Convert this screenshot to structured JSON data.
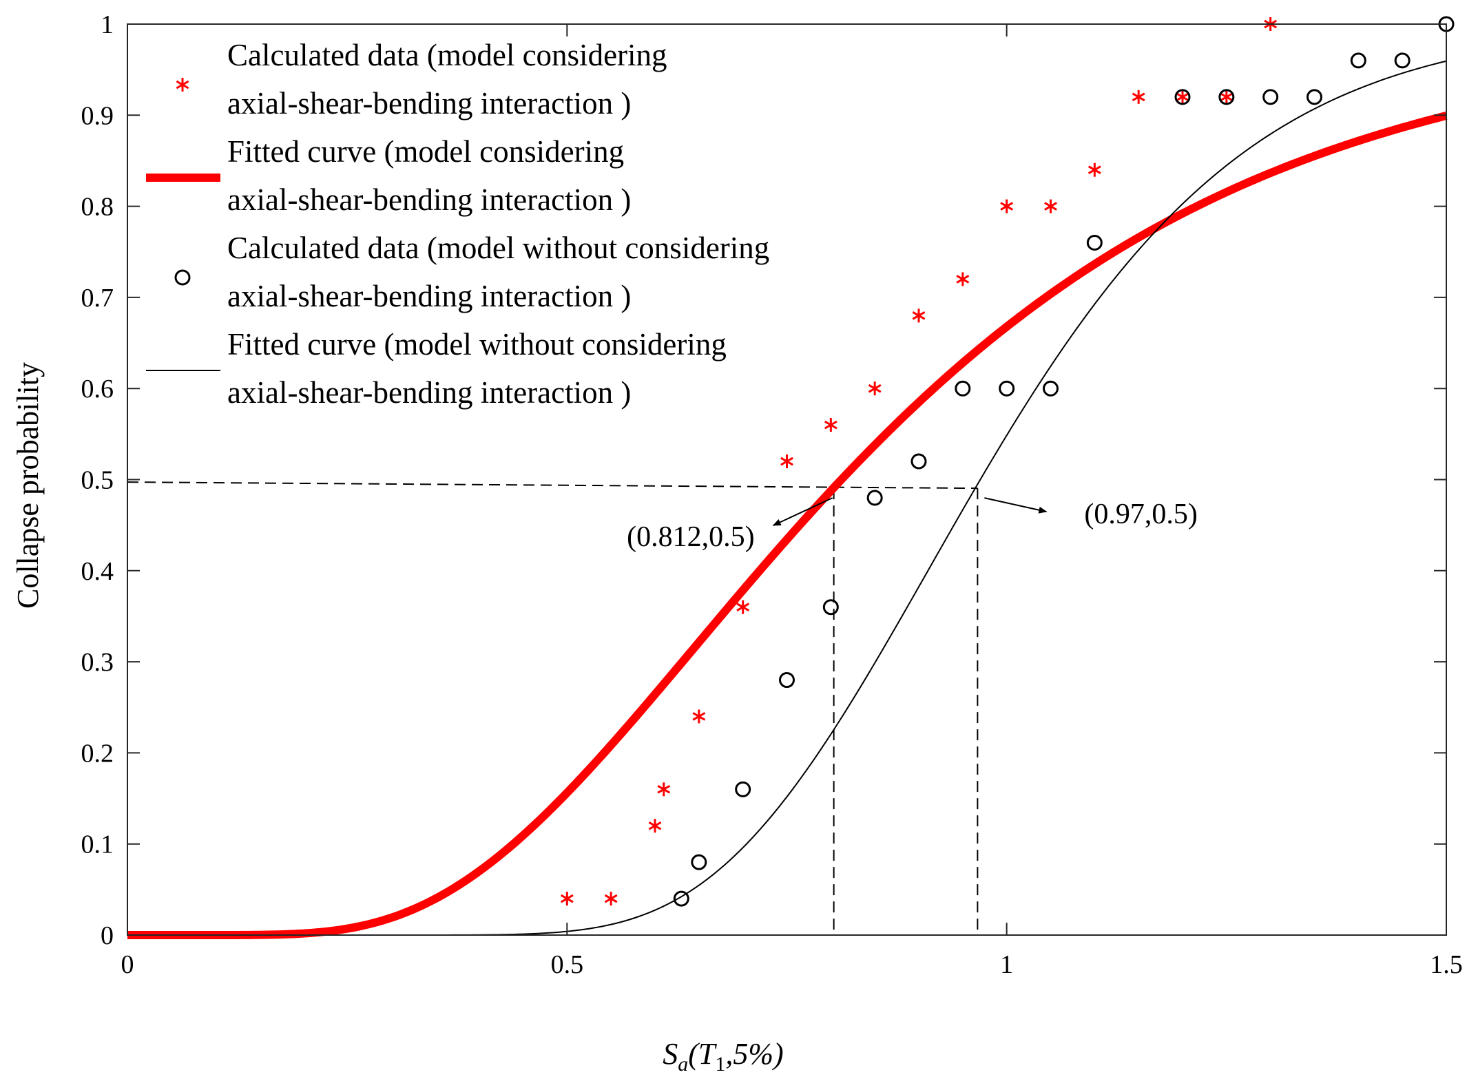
{
  "chart_data": {
    "type": "scatter",
    "title": "",
    "xlabel": {
      "main": "S",
      "sub": "a",
      "open": "(T",
      "sub2": "1",
      "rest": ",5%)"
    },
    "ylabel": "Collapse probability",
    "xlim": [
      0,
      1.5
    ],
    "ylim": [
      0,
      1
    ],
    "xticks": [
      0,
      0.5,
      1,
      1.5
    ],
    "xtick_labels": [
      "0",
      "0.5",
      "1",
      "1.5"
    ],
    "yticks": [
      0,
      0.1,
      0.2,
      0.3,
      0.4,
      0.5,
      0.6,
      0.7,
      0.8,
      0.9,
      1
    ],
    "ytick_labels": [
      "0",
      "0.1",
      "0.2",
      "0.3",
      "0.4",
      "0.5",
      "0.6",
      "0.7",
      "0.8",
      "0.9",
      "1"
    ],
    "grid": false,
    "legend_position": "top-left",
    "series": [
      {
        "name": "Calculated data (model considering axial-shear-bending interaction )",
        "legend_lines": [
          "Calculated data (model considering",
          "axial-shear-bending interaction )"
        ],
        "kind": "scatter",
        "marker": "asterisk",
        "color": "#ff0000",
        "x": [
          0.5,
          0.55,
          0.6,
          0.61,
          0.65,
          0.7,
          0.75,
          0.8,
          0.85,
          0.9,
          0.95,
          1.0,
          1.05,
          1.1,
          1.15,
          1.2,
          1.25,
          1.3
        ],
        "y": [
          0.04,
          0.04,
          0.12,
          0.16,
          0.24,
          0.36,
          0.52,
          0.56,
          0.6,
          0.68,
          0.72,
          0.8,
          0.8,
          0.84,
          0.92,
          0.92,
          0.92,
          1.0
        ]
      },
      {
        "name": "Fitted curve (model considering axial-shear-bending interaction )",
        "legend_lines": [
          "Fitted curve (model considering",
          "axial-shear-bending interaction )"
        ],
        "kind": "lognormal_cdf",
        "median": 0.812,
        "beta": 0.48,
        "color": "#ff0000",
        "thick": true
      },
      {
        "name": "Calculated data (model without considering axial-shear-bending interaction )",
        "legend_lines": [
          "Calculated data (model without considering",
          "axial-shear-bending interaction )"
        ],
        "kind": "scatter",
        "marker": "circle",
        "color": "#000000",
        "x": [
          0.63,
          0.65,
          0.7,
          0.75,
          0.8,
          0.85,
          0.9,
          0.95,
          1.0,
          1.05,
          1.1,
          1.2,
          1.25,
          1.3,
          1.35,
          1.4,
          1.45,
          1.5
        ],
        "y": [
          0.04,
          0.08,
          0.16,
          0.28,
          0.36,
          0.48,
          0.52,
          0.6,
          0.6,
          0.6,
          0.76,
          0.92,
          0.92,
          0.92,
          0.92,
          0.96,
          0.96,
          1.0
        ]
      },
      {
        "name": "Fitted curve (model without considering axial-shear-bending interaction )",
        "legend_lines": [
          "Fitted curve (model without considering",
          " axial-shear-bending interaction )"
        ],
        "kind": "lognormal_cdf",
        "median": 0.97,
        "beta": 0.25,
        "color": "#000000",
        "thick": false
      }
    ],
    "annotations": [
      {
        "text": "(0.812,0.5)",
        "x": 0.812,
        "y": 0.5,
        "side": "left"
      },
      {
        "text": "(0.97,0.5)",
        "x": 0.97,
        "y": 0.5,
        "side": "right"
      }
    ]
  }
}
